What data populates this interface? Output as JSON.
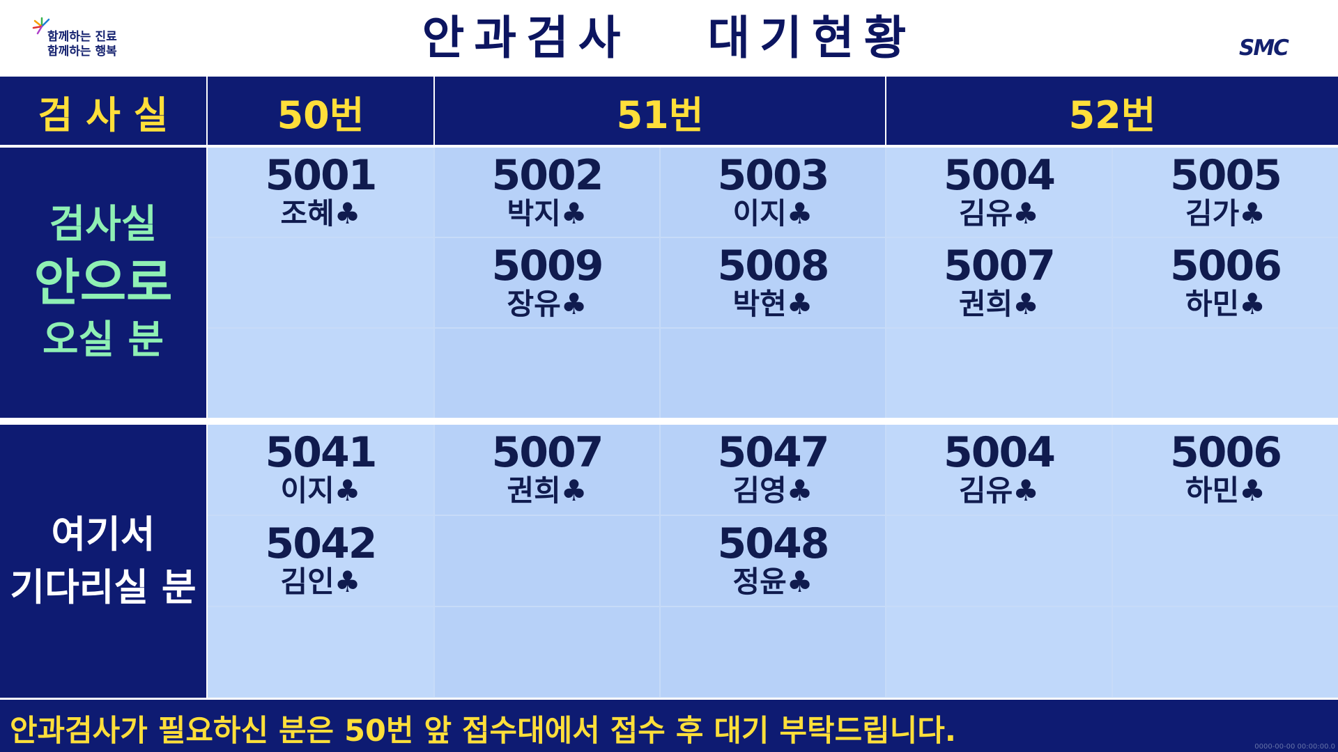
{
  "header": {
    "title": "안과검사   대기현황",
    "slogan_line1": "함께하는 진료",
    "slogan_line2": "함께하는 행복",
    "brand": "SMC"
  },
  "columns": {
    "room_label": "검 사 실",
    "room50": "50번",
    "room51": "51번",
    "room52": "52번"
  },
  "inside": {
    "line1": "검사실",
    "line2": "안으로",
    "line3": "오실 분",
    "rows": [
      [
        {
          "num": "5001",
          "name": "조혜♣"
        },
        {
          "num": "5002",
          "name": "박지♣"
        },
        {
          "num": "5003",
          "name": "이지♣"
        },
        {
          "num": "5004",
          "name": "김유♣"
        },
        {
          "num": "5005",
          "name": "김가♣"
        }
      ],
      [
        {
          "num": "",
          "name": ""
        },
        {
          "num": "5009",
          "name": "장유♣"
        },
        {
          "num": "5008",
          "name": "박현♣"
        },
        {
          "num": "5007",
          "name": "권희♣"
        },
        {
          "num": "5006",
          "name": "하민♣"
        }
      ],
      [
        {
          "num": "",
          "name": ""
        },
        {
          "num": "",
          "name": ""
        },
        {
          "num": "",
          "name": ""
        },
        {
          "num": "",
          "name": ""
        },
        {
          "num": "",
          "name": ""
        }
      ]
    ]
  },
  "waiting": {
    "line1": "여기서",
    "line2": "기다리실 분",
    "rows": [
      [
        {
          "num": "5041",
          "name": "이지♣"
        },
        {
          "num": "5007",
          "name": "권희♣"
        },
        {
          "num": "5047",
          "name": "김영♣"
        },
        {
          "num": "5004",
          "name": "김유♣"
        },
        {
          "num": "5006",
          "name": "하민♣"
        }
      ],
      [
        {
          "num": "5042",
          "name": "김인♣"
        },
        {
          "num": "",
          "name": ""
        },
        {
          "num": "5048",
          "name": "정윤♣"
        },
        {
          "num": "",
          "name": ""
        },
        {
          "num": "",
          "name": ""
        }
      ],
      [
        {
          "num": "",
          "name": ""
        },
        {
          "num": "",
          "name": ""
        },
        {
          "num": "",
          "name": ""
        },
        {
          "num": "",
          "name": ""
        },
        {
          "num": "",
          "name": ""
        }
      ]
    ]
  },
  "footer": {
    "message": "안과검사가 필요하신 분은 50번 앞 접수대에서 접수 후 대기 부탁드립니다.",
    "timestamp": "0000-00-00 00:00:00.0"
  },
  "colors": {
    "navy": "#0e1b72",
    "yellow": "#ffdf3a",
    "mint": "#8ff0b4",
    "cell_light": "#c0d8fa",
    "cell_alt": "#b7d1f8"
  }
}
